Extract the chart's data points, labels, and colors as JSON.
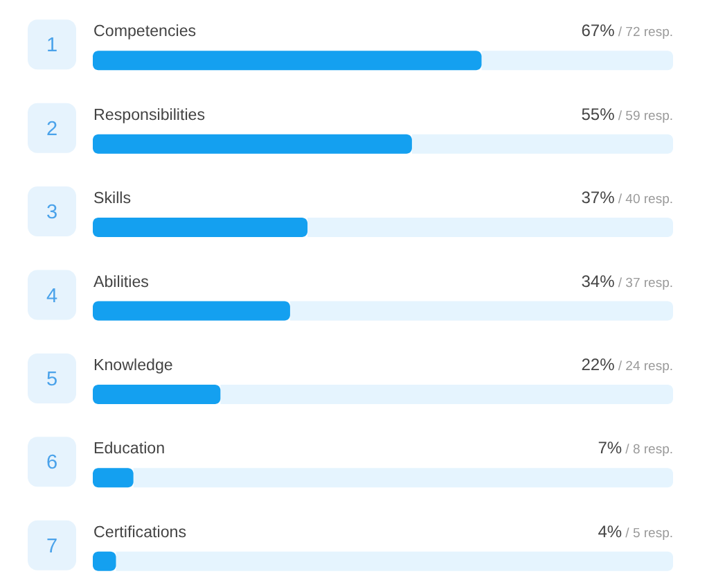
{
  "chart_data": {
    "type": "bar",
    "orientation": "horizontal",
    "categories": [
      "Competencies",
      "Responsibilities",
      "Skills",
      "Abilities",
      "Knowledge",
      "Education",
      "Certifications"
    ],
    "values": [
      67,
      55,
      37,
      34,
      22,
      7,
      4
    ],
    "color": "#14a0f0",
    "value_labels": [
      "67% / 72 resp.",
      "55% / 59 resp.",
      "37% / 40 resp.",
      "34% / 37 resp.",
      "22% / 24 resp.",
      "7% / 8 resp.",
      "4% / 5 resp."
    ],
    "xlim": [
      0,
      100
    ],
    "tick_labels": "y",
    "annotations": [
      "1",
      "2",
      "3",
      "4",
      "5",
      "6",
      "7"
    ]
  }
}
